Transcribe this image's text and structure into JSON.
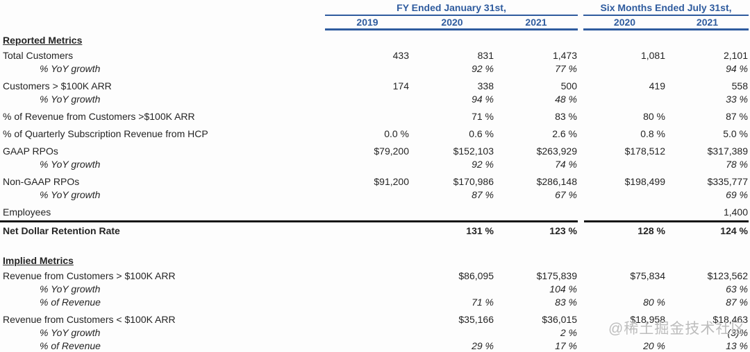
{
  "header": {
    "group1": {
      "title": "FY Ended January 31st,",
      "years": [
        "2019",
        "2020",
        "2021"
      ]
    },
    "group2": {
      "title": "Six Months Ended July 31st,",
      "years": [
        "2020",
        "2021"
      ]
    }
  },
  "columns": [
    "FY2019",
    "FY2020",
    "FY2021",
    "6M-Jul-2020",
    "6M-Jul-2021"
  ],
  "sections": [
    {
      "title": "Reported Metrics",
      "rows": [
        {
          "label": "Total Customers",
          "style": "normal",
          "gap": false,
          "values": [
            "433",
            "831",
            "1,473",
            "1,081",
            "2,101"
          ]
        },
        {
          "label": "% YoY growth",
          "style": "indent-italic",
          "gap": false,
          "values": [
            "",
            "92 %",
            "77 %",
            "",
            "94 %"
          ]
        },
        {
          "label": "Customers > $100K ARR",
          "style": "normal",
          "gap": true,
          "values": [
            "174",
            "338",
            "500",
            "419",
            "558"
          ]
        },
        {
          "label": "% YoY growth",
          "style": "indent-italic",
          "gap": false,
          "values": [
            "",
            "94 %",
            "48 %",
            "",
            "33 %"
          ]
        },
        {
          "label": "% of Revenue from Customers >$100K ARR",
          "style": "normal",
          "gap": true,
          "values": [
            "",
            "71 %",
            "83 %",
            "80 %",
            "87 %"
          ]
        },
        {
          "label": "% of Quarterly Subscription Revenue from HCP",
          "style": "normal",
          "gap": true,
          "values": [
            "0.0 %",
            "0.6 %",
            "2.6 %",
            "0.8 %",
            "5.0 %"
          ]
        },
        {
          "label": "GAAP RPOs",
          "style": "normal",
          "gap": true,
          "values": [
            "$79,200",
            "$152,103",
            "$263,929",
            "$178,512",
            "$317,389"
          ]
        },
        {
          "label": "% YoY growth",
          "style": "indent-italic",
          "gap": false,
          "values": [
            "",
            "92 %",
            "74 %",
            "",
            "78 %"
          ]
        },
        {
          "label": "Non-GAAP RPOs",
          "style": "normal",
          "gap": true,
          "values": [
            "$91,200",
            "$170,986",
            "$286,148",
            "$198,499",
            "$335,777"
          ]
        },
        {
          "label": "% YoY growth",
          "style": "indent-italic",
          "gap": false,
          "values": [
            "",
            "87 %",
            "67 %",
            "",
            "69 %"
          ]
        },
        {
          "label": "Employees",
          "style": "normal",
          "gap": true,
          "values": [
            "",
            "",
            "",
            "",
            "1,400"
          ]
        },
        {
          "label": "Net Dollar Retention Rate",
          "style": "bold",
          "gap": false,
          "rule_above": true,
          "values": [
            "",
            "131 %",
            "123 %",
            "128 %",
            "124 %"
          ]
        }
      ]
    },
    {
      "title": "Implied Metrics",
      "rows": [
        {
          "label": "Revenue from Customers > $100K ARR",
          "style": "normal",
          "gap": false,
          "values": [
            "",
            "$86,095",
            "$175,839",
            "$75,834",
            "$123,562"
          ]
        },
        {
          "label": "% YoY growth",
          "style": "indent-italic",
          "gap": false,
          "values": [
            "",
            "",
            "104 %",
            "",
            "63 %"
          ]
        },
        {
          "label": "% of Revenue",
          "style": "indent-italic",
          "gap": false,
          "values": [
            "",
            "71 %",
            "83 %",
            "80 %",
            "87 %"
          ]
        },
        {
          "label": "Revenue from Customers < $100K ARR",
          "style": "normal",
          "gap": true,
          "values": [
            "",
            "$35,166",
            "$36,015",
            "$18,958",
            "$18,463"
          ]
        },
        {
          "label": "% YoY growth",
          "style": "indent-italic",
          "gap": false,
          "values": [
            "",
            "",
            "2 %",
            "",
            "(3)%"
          ]
        },
        {
          "label": "% of Revenue",
          "style": "indent-italic",
          "gap": false,
          "values": [
            "",
            "29 %",
            "17 %",
            "20 %",
            "13 %"
          ]
        }
      ]
    }
  ],
  "watermark": "@稀土掘金技术社区",
  "colors": {
    "header_blue": "#2e5b9e",
    "rule_black": "#161616",
    "watermark_gray": "#bdbdbd"
  }
}
